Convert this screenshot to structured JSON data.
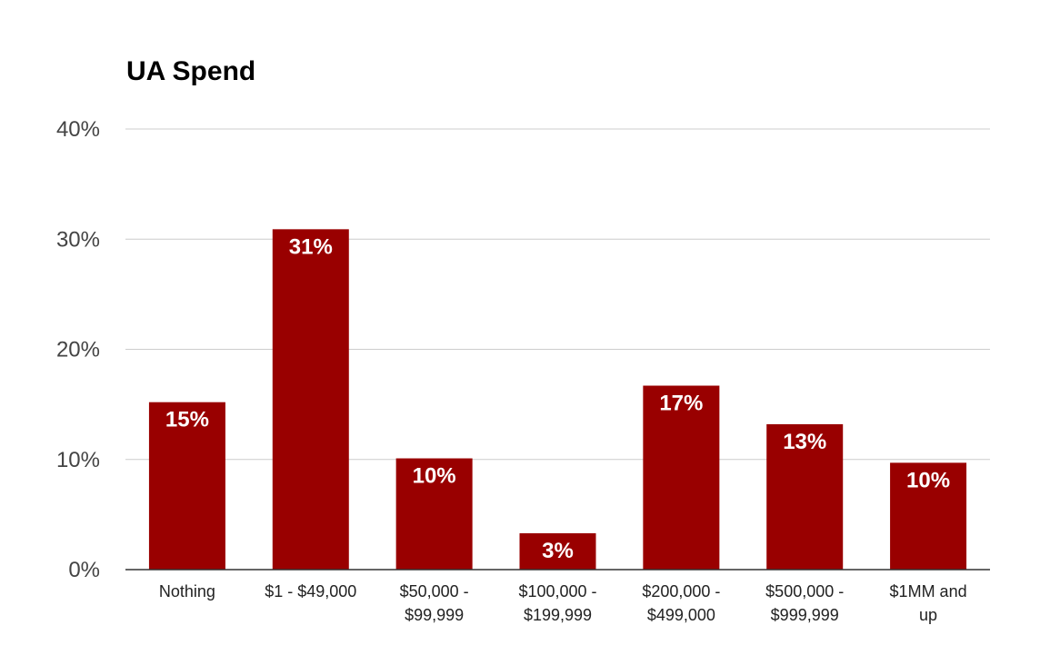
{
  "chart_data": {
    "type": "bar",
    "title": "UA Spend",
    "xlabel": "",
    "ylabel": "",
    "categories": [
      [
        "Nothing"
      ],
      [
        "$1 - $49,000"
      ],
      [
        "$50,000 -",
        "$99,999"
      ],
      [
        "$100,000 -",
        "$199,999"
      ],
      [
        "$200,000 -",
        "$499,000"
      ],
      [
        "$500,000 -",
        "$999,999"
      ],
      [
        "$1MM and",
        "up"
      ]
    ],
    "values": [
      15.2,
      30.9,
      10.1,
      3.3,
      16.7,
      13.2,
      9.7
    ],
    "data_labels": [
      "15%",
      "31%",
      "10%",
      "3%",
      "17%",
      "13%",
      "10%"
    ],
    "ylim": [
      0,
      40
    ],
    "yticks": [
      0,
      10,
      20,
      30,
      40
    ],
    "ytick_labels": [
      "0%",
      "10%",
      "20%",
      "30%",
      "40%"
    ],
    "grid": true,
    "bar_color": "#990000",
    "gridline_color": "#cccccc",
    "axis_color": "#333333"
  }
}
